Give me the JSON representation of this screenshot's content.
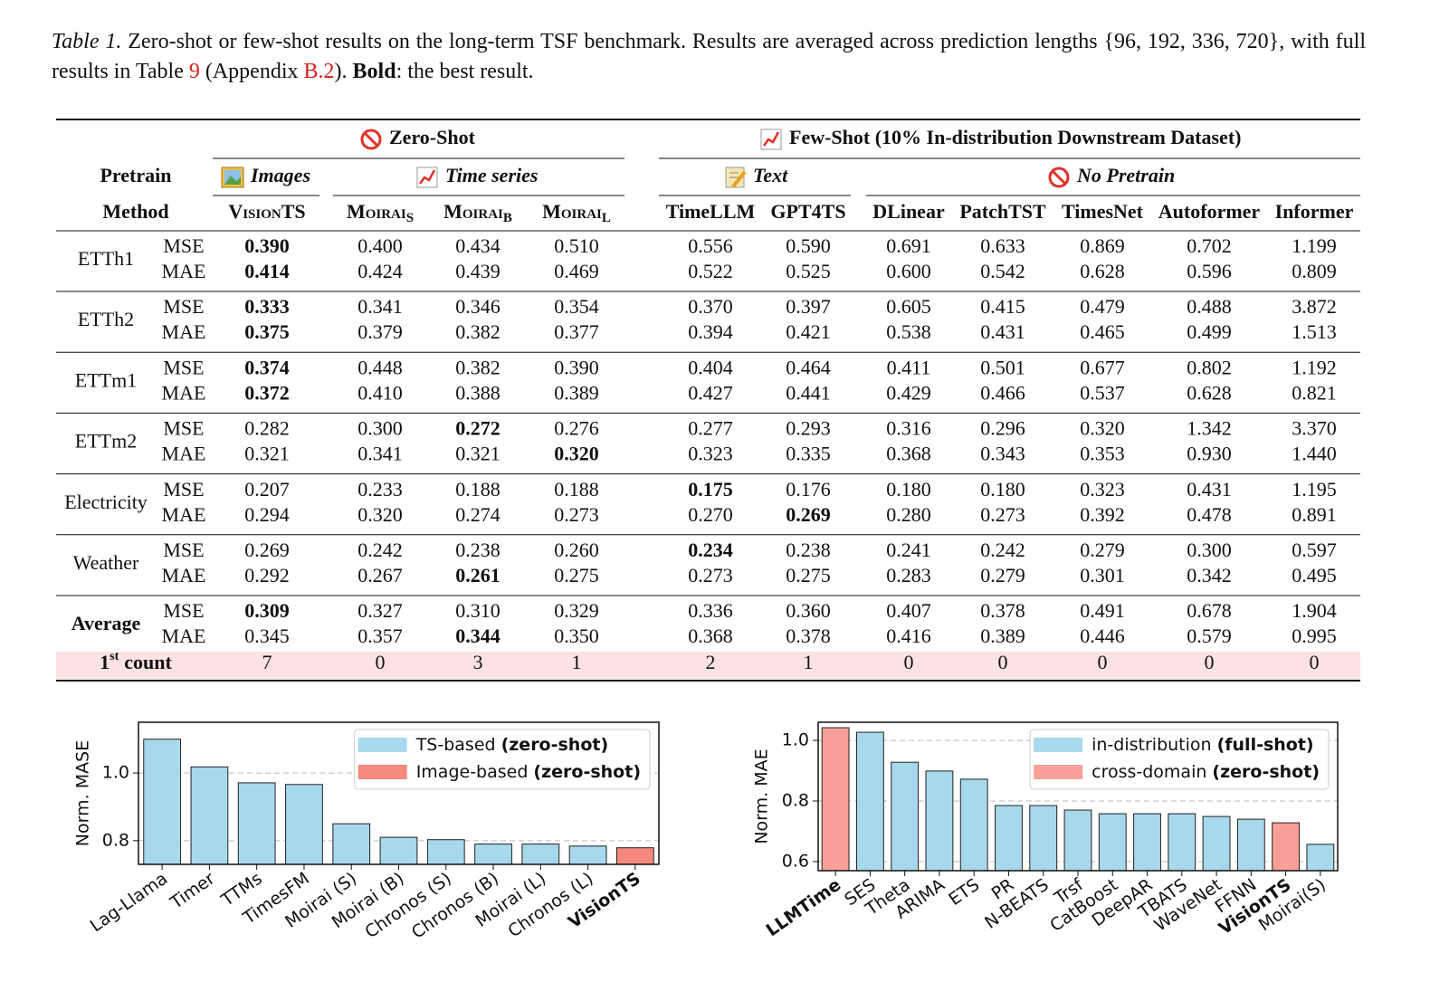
{
  "caption": {
    "label": "Table 1.",
    "text": " Zero-shot or few-shot results on the long-term TSF benchmark. Results are averaged across prediction lengths {96, 192, 336, 720}, with full results in Table ",
    "ref1": "9",
    "mid": " (Appendix ",
    "ref2": "B.2",
    "mid2": "). ",
    "bold": "Bold",
    "end": ": the best result."
  },
  "table": {
    "groups": [
      "Zero-Shot",
      "Few-Shot (10% In-distribution Downstream Dataset)"
    ],
    "pretrain_label": "Pretrain",
    "pretrain": [
      "Images",
      "Time series",
      "Text",
      "No Pretrain"
    ],
    "method_label": "Method",
    "methods": [
      {
        "name": "VisionTS",
        "smallcaps": true
      },
      {
        "name": "Moirai",
        "sub": "S",
        "smallcaps": true
      },
      {
        "name": "Moirai",
        "sub": "B",
        "smallcaps": true
      },
      {
        "name": "Moirai",
        "sub": "L",
        "smallcaps": true
      },
      {
        "name": "TimeLLM"
      },
      {
        "name": "GPT4TS"
      },
      {
        "name": "DLinear"
      },
      {
        "name": "PatchTST"
      },
      {
        "name": "TimesNet"
      },
      {
        "name": "Autoformer"
      },
      {
        "name": "Informer"
      }
    ],
    "metrics": [
      "MSE",
      "MAE"
    ],
    "rows": [
      {
        "dataset": "ETTh1",
        "values": [
          [
            "0.390",
            "0.400",
            "0.434",
            "0.510",
            "0.556",
            "0.590",
            "0.691",
            "0.633",
            "0.869",
            "0.702",
            "1.199"
          ],
          [
            "0.414",
            "0.424",
            "0.439",
            "0.469",
            "0.522",
            "0.525",
            "0.600",
            "0.542",
            "0.628",
            "0.596",
            "0.809"
          ]
        ],
        "bold": [
          [
            0
          ],
          [
            0
          ]
        ]
      },
      {
        "dataset": "ETTh2",
        "values": [
          [
            "0.333",
            "0.341",
            "0.346",
            "0.354",
            "0.370",
            "0.397",
            "0.605",
            "0.415",
            "0.479",
            "0.488",
            "3.872"
          ],
          [
            "0.375",
            "0.379",
            "0.382",
            "0.377",
            "0.394",
            "0.421",
            "0.538",
            "0.431",
            "0.465",
            "0.499",
            "1.513"
          ]
        ],
        "bold": [
          [
            0
          ],
          [
            0
          ]
        ]
      },
      {
        "dataset": "ETTm1",
        "values": [
          [
            "0.374",
            "0.448",
            "0.382",
            "0.390",
            "0.404",
            "0.464",
            "0.411",
            "0.501",
            "0.677",
            "0.802",
            "1.192"
          ],
          [
            "0.372",
            "0.410",
            "0.388",
            "0.389",
            "0.427",
            "0.441",
            "0.429",
            "0.466",
            "0.537",
            "0.628",
            "0.821"
          ]
        ],
        "bold": [
          [
            0
          ],
          [
            0
          ]
        ]
      },
      {
        "dataset": "ETTm2",
        "values": [
          [
            "0.282",
            "0.300",
            "0.272",
            "0.276",
            "0.277",
            "0.293",
            "0.316",
            "0.296",
            "0.320",
            "1.342",
            "3.370"
          ],
          [
            "0.321",
            "0.341",
            "0.321",
            "0.320",
            "0.323",
            "0.335",
            "0.368",
            "0.343",
            "0.353",
            "0.930",
            "1.440"
          ]
        ],
        "bold": [
          [
            2
          ],
          [
            3
          ]
        ]
      },
      {
        "dataset": "Electricity",
        "values": [
          [
            "0.207",
            "0.233",
            "0.188",
            "0.188",
            "0.175",
            "0.176",
            "0.180",
            "0.180",
            "0.323",
            "0.431",
            "1.195"
          ],
          [
            "0.294",
            "0.320",
            "0.274",
            "0.273",
            "0.270",
            "0.269",
            "0.280",
            "0.273",
            "0.392",
            "0.478",
            "0.891"
          ]
        ],
        "bold": [
          [
            4
          ],
          [
            5
          ]
        ]
      },
      {
        "dataset": "Weather",
        "values": [
          [
            "0.269",
            "0.242",
            "0.238",
            "0.260",
            "0.234",
            "0.238",
            "0.241",
            "0.242",
            "0.279",
            "0.300",
            "0.597"
          ],
          [
            "0.292",
            "0.267",
            "0.261",
            "0.275",
            "0.273",
            "0.275",
            "0.283",
            "0.279",
            "0.301",
            "0.342",
            "0.495"
          ]
        ],
        "bold": [
          [
            4
          ],
          [
            2
          ]
        ]
      },
      {
        "dataset": "Average",
        "bold_label": true,
        "values": [
          [
            "0.309",
            "0.327",
            "0.310",
            "0.329",
            "0.336",
            "0.360",
            "0.407",
            "0.378",
            "0.491",
            "0.678",
            "1.904"
          ],
          [
            "0.345",
            "0.357",
            "0.344",
            "0.350",
            "0.368",
            "0.378",
            "0.416",
            "0.389",
            "0.446",
            "0.579",
            "0.995"
          ]
        ],
        "bold": [
          [
            0
          ],
          [
            2
          ]
        ]
      }
    ],
    "count": {
      "label": "1",
      "sup": "st",
      "text": "count",
      "values": [
        7,
        0,
        3,
        1,
        2,
        1,
        0,
        0,
        0,
        0,
        0
      ]
    }
  },
  "chart_data": [
    {
      "type": "bar",
      "y_label": "Norm. MASE",
      "categories": [
        "Lag-Llama",
        "Timer",
        "TTMs",
        "TimesFM",
        "Moirai (S)",
        "Moirai (B)",
        "Chronos (S)",
        "Chronos (B)",
        "Moirai (L)",
        "Chronos (L)",
        "VisionTS"
      ],
      "series": [
        {
          "name": "TS-based",
          "qualifier": "(zero-shot)",
          "color": "#a8d8ec",
          "values": [
            1.1,
            1.018,
            0.971,
            0.966,
            0.85,
            0.81,
            0.803,
            0.79,
            0.79,
            0.784,
            null
          ]
        },
        {
          "name": "Image-based",
          "qualifier": "(zero-shot)",
          "color": "#f48a7e",
          "values": [
            null,
            null,
            null,
            null,
            null,
            null,
            null,
            null,
            null,
            null,
            0.779
          ]
        }
      ],
      "bold_categories": [
        10
      ],
      "red_categories": [
        10
      ],
      "ylim": [
        0.73,
        1.15
      ],
      "yticks": [
        0.8,
        {
          "value": 1.0,
          "label": "1.0"
        }
      ],
      "grid": true,
      "legend": "upper right"
    },
    {
      "type": "bar",
      "y_label": "Norm. MAE",
      "categories": [
        "LLMTime",
        "SES",
        "Theta",
        "ARIMA",
        "ETS",
        "PR",
        "N-BEATS",
        "Trsf",
        "CatBoost",
        "DeepAR",
        "TBATS",
        "WaveNet",
        "FFNN",
        "VisionTS",
        "Moirai(S)"
      ],
      "series": [
        {
          "name": "in-distribution",
          "qualifier": "(full-shot)",
          "color": "#a8d8ec",
          "values": [
            null,
            1.027,
            0.928,
            0.899,
            0.872,
            0.785,
            0.785,
            0.77,
            0.758,
            0.758,
            0.758,
            0.749,
            0.74,
            null,
            0.657
          ]
        },
        {
          "name": "cross-domain",
          "qualifier": "(zero-shot)",
          "color": "#f8a097",
          "values": [
            1.042,
            null,
            null,
            null,
            null,
            null,
            null,
            null,
            null,
            null,
            null,
            null,
            null,
            0.728,
            null
          ]
        }
      ],
      "bold_categories": [
        0,
        13
      ],
      "red_categories": [
        13
      ],
      "ylim": [
        0.57,
        1.06
      ],
      "yticks": [
        0.6,
        0.8,
        {
          "value": 1.0,
          "label": "1.0"
        }
      ],
      "grid": true,
      "legend": "upper right"
    }
  ]
}
